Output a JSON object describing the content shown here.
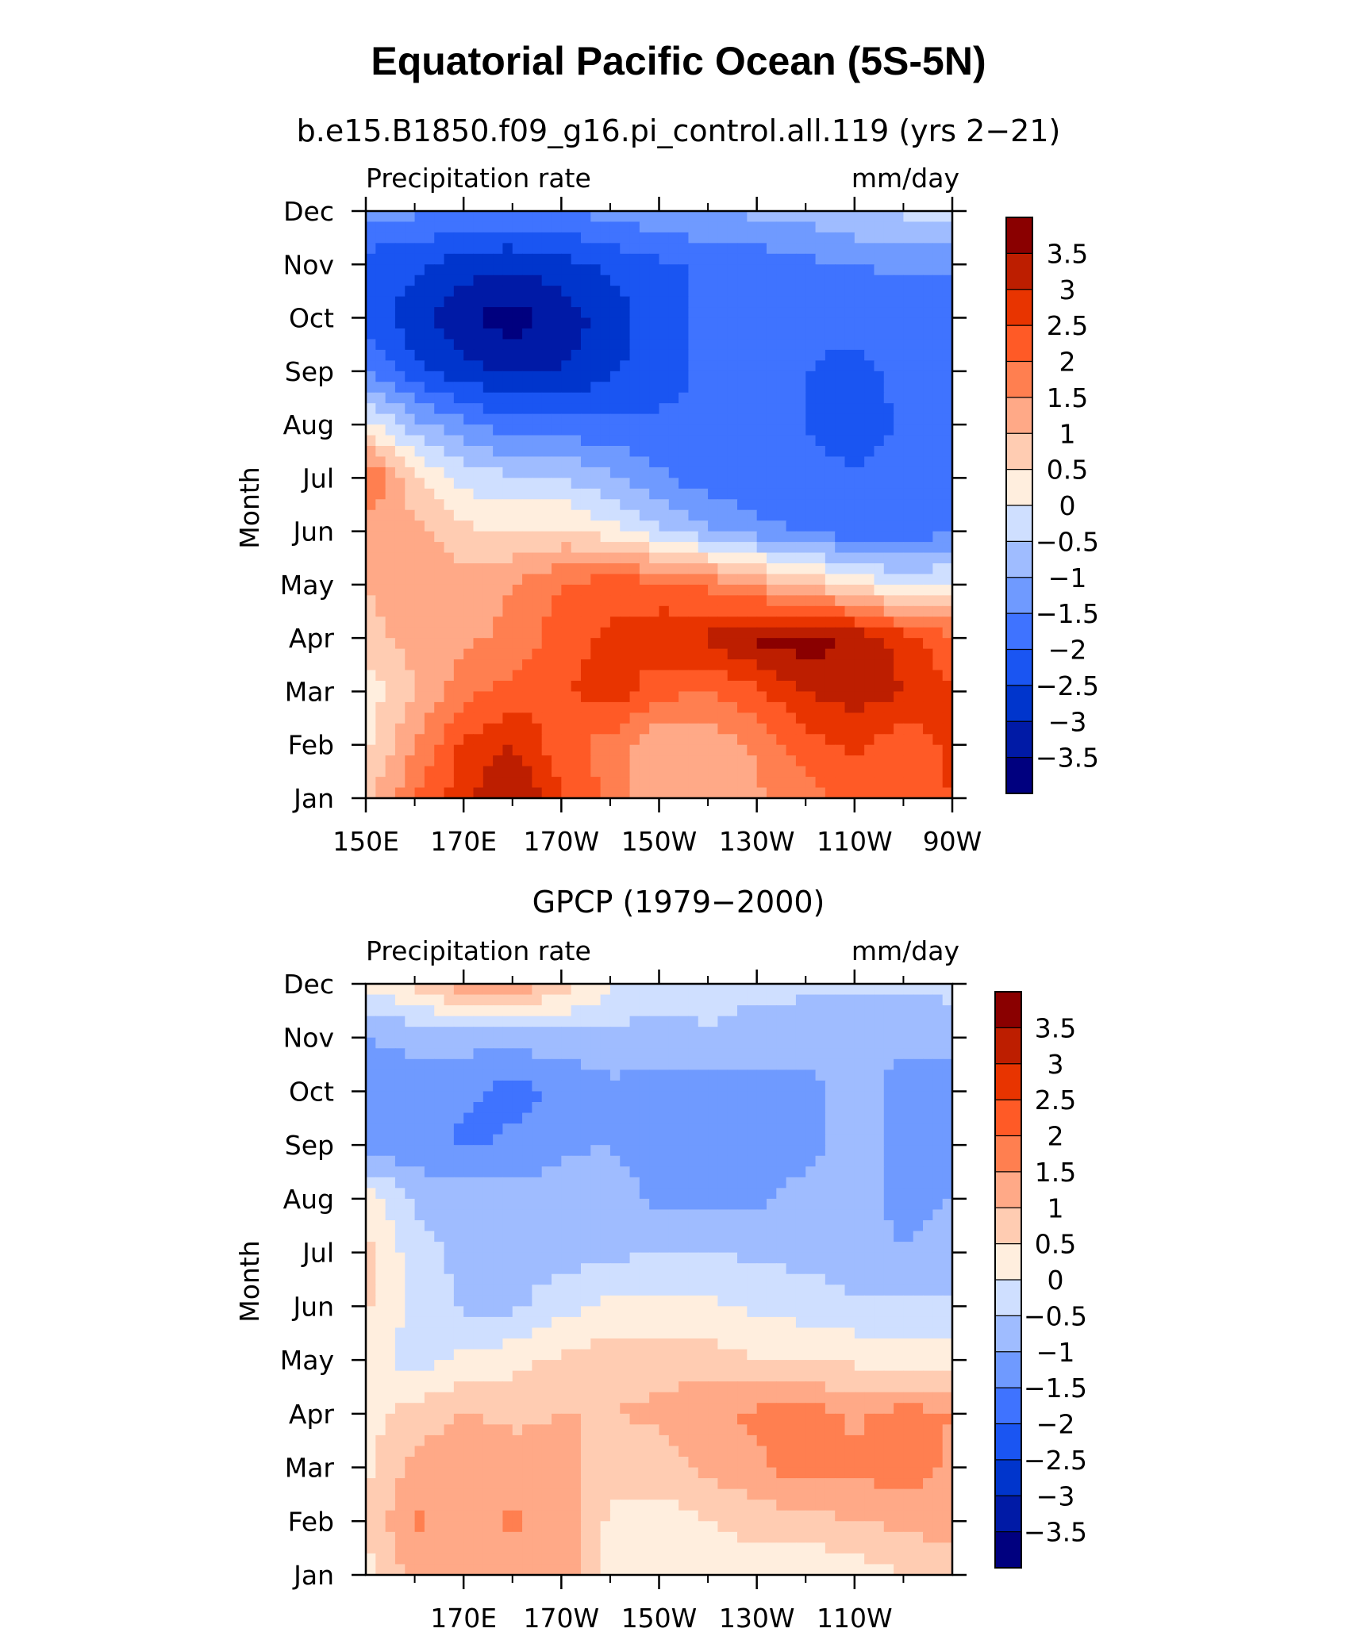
{
  "title": "Equatorial Pacific Ocean (5S-5N)",
  "chart_data": [
    {
      "type": "heatmap",
      "subtitle": "b.e15.B1850.f09_g16.pi_control.all.119 (yrs 2−21)",
      "left_label": "Precipitation rate",
      "right_label": "mm/day",
      "ylabel": "Month",
      "x_tick_labels": [
        "150E",
        "170E",
        "170W",
        "150W",
        "130W",
        "110W",
        "90W"
      ],
      "y_tick_labels": [
        "Jan",
        "Feb",
        "Mar",
        "Apr",
        "May",
        "Jun",
        "Jul",
        "Aug",
        "Sep",
        "Oct",
        "Nov",
        "Dec"
      ],
      "xlim": [
        150,
        270
      ],
      "colorbar_labels": [
        "3.5",
        "3",
        "2.5",
        "2",
        "1.5",
        "1",
        "0.5",
        "0",
        "−0.5",
        "−1",
        "−1.5",
        "−2",
        "−2.5",
        "−3",
        "−3.5"
      ],
      "lon": [
        150,
        160,
        170,
        180,
        190,
        200,
        210,
        220,
        230,
        240,
        250,
        260,
        270
      ],
      "z": [
        [
          0.8,
          2.0,
          2.8,
          3.6,
          2.6,
          1.8,
          1.2,
          1.0,
          1.4,
          1.8,
          2.2,
          2.4,
          2.5
        ],
        [
          0.4,
          1.5,
          2.6,
          3.0,
          2.2,
          1.8,
          1.0,
          1.1,
          1.6,
          2.3,
          2.6,
          2.2,
          2.6
        ],
        [
          0.2,
          1.0,
          1.8,
          2.2,
          2.4,
          2.8,
          2.2,
          2.0,
          2.4,
          3.0,
          3.3,
          3.0,
          2.6
        ],
        [
          0.8,
          1.2,
          1.4,
          1.6,
          2.3,
          2.6,
          2.8,
          3.1,
          3.6,
          3.8,
          3.4,
          2.8,
          2.0
        ],
        [
          1.0,
          1.4,
          1.2,
          1.5,
          2.0,
          2.3,
          2.2,
          1.9,
          1.4,
          0.9,
          0.4,
          -0.2,
          0.2
        ],
        [
          1.2,
          1.2,
          0.6,
          0.5,
          0.6,
          0.2,
          -0.4,
          -0.9,
          -1.3,
          -1.6,
          -1.8,
          -1.8,
          -1.6
        ],
        [
          2.2,
          0.6,
          -0.2,
          -0.4,
          -0.5,
          -0.9,
          -1.4,
          -1.8,
          -1.9,
          -1.9,
          -1.9,
          -1.9,
          -1.9
        ],
        [
          0.2,
          -0.8,
          -1.4,
          -1.8,
          -1.8,
          -1.9,
          -1.9,
          -1.9,
          -1.9,
          -2.0,
          -2.3,
          -1.9,
          -1.9
        ],
        [
          -1.4,
          -2.4,
          -2.8,
          -3.1,
          -3.0,
          -2.6,
          -2.2,
          -1.9,
          -1.9,
          -2.0,
          -2.1,
          -1.9,
          -1.9
        ],
        [
          -2.2,
          -2.8,
          -3.4,
          -3.8,
          -3.3,
          -2.8,
          -2.2,
          -1.9,
          -1.9,
          -1.9,
          -1.9,
          -1.9,
          -1.8
        ],
        [
          -2.2,
          -2.4,
          -2.8,
          -2.9,
          -2.7,
          -2.4,
          -2.1,
          -1.9,
          -1.8,
          -1.6,
          -1.5,
          -1.4,
          -1.4
        ],
        [
          -1.4,
          -1.4,
          -1.6,
          -1.6,
          -1.5,
          -1.3,
          -1.1,
          -1.0,
          -0.9,
          -0.8,
          -0.5,
          -0.4,
          -0.4
        ]
      ]
    },
    {
      "type": "heatmap",
      "subtitle": "GPCP (1979−2000)",
      "left_label": "Precipitation rate",
      "right_label": "mm/day",
      "ylabel": "Month",
      "x_tick_labels": [
        "170E",
        "170W",
        "150W",
        "130W",
        "110W"
      ],
      "y_tick_labels": [
        "Jan",
        "Feb",
        "Mar",
        "Apr",
        "May",
        "Jun",
        "Jul",
        "Aug",
        "Sep",
        "Oct",
        "Nov",
        "Dec"
      ],
      "xlim": [
        150,
        270
      ],
      "colorbar_labels": [
        "3.5",
        "3",
        "2.5",
        "2",
        "1.5",
        "1",
        "0.5",
        "0",
        "−0.5",
        "−1",
        "−1.5",
        "−2",
        "−2.5",
        "−3",
        "−3.5"
      ],
      "lon": [
        150,
        160,
        170,
        180,
        190,
        200,
        210,
        220,
        230,
        240,
        250,
        260,
        270
      ],
      "z": [
        [
          0.3,
          1.2,
          1.4,
          1.3,
          1.5,
          0.2,
          0.1,
          0.2,
          0.2,
          0.1,
          0.2,
          0.5,
          0.8
        ],
        [
          0.5,
          1.6,
          1.2,
          1.6,
          1.3,
          0.4,
          0.2,
          0.5,
          0.7,
          0.8,
          1.0,
          1.1,
          1.2
        ],
        [
          0.4,
          1.2,
          1.5,
          1.2,
          1.2,
          0.6,
          0.8,
          1.1,
          1.4,
          1.8,
          1.6,
          1.8,
          1.4
        ],
        [
          0.3,
          0.7,
          1.0,
          0.9,
          1.0,
          1.0,
          1.1,
          1.4,
          1.6,
          1.8,
          1.4,
          1.7,
          1.5
        ],
        [
          0.2,
          -0.2,
          0.1,
          0.3,
          0.6,
          0.8,
          0.8,
          0.7,
          0.5,
          0.4,
          0.4,
          0.3,
          0.2
        ],
        [
          0.6,
          -0.2,
          -0.6,
          -0.6,
          -0.2,
          0.1,
          0.2,
          0.1,
          -0.1,
          -0.2,
          -0.4,
          -0.4,
          -0.4
        ],
        [
          0.7,
          -0.3,
          -0.6,
          -0.7,
          -0.7,
          -0.6,
          -0.5,
          -0.5,
          -0.6,
          -0.7,
          -0.8,
          -1.0,
          -0.8
        ],
        [
          0.3,
          -0.6,
          -0.7,
          -0.8,
          -0.8,
          -0.7,
          -1.1,
          -1.1,
          -1.1,
          -0.8,
          -0.7,
          -1.2,
          -1.0
        ],
        [
          -1.3,
          -1.3,
          -1.6,
          -1.4,
          -1.1,
          -1.0,
          -1.3,
          -1.2,
          -1.1,
          -1.2,
          -0.8,
          -1.2,
          -1.2
        ],
        [
          -1.2,
          -1.2,
          -1.4,
          -1.7,
          -1.4,
          -1.1,
          -1.2,
          -1.2,
          -1.2,
          -1.2,
          -0.8,
          -1.2,
          -1.2
        ],
        [
          -1.0,
          -0.9,
          -0.8,
          -0.8,
          -0.7,
          -0.7,
          -0.7,
          -0.6,
          -0.8,
          -0.8,
          -0.8,
          -0.9,
          -0.9
        ],
        [
          0.1,
          0.6,
          1.4,
          1.5,
          0.8,
          0.1,
          -0.2,
          -0.2,
          -0.3,
          -0.4,
          -0.4,
          -0.4,
          -0.3
        ]
      ]
    }
  ],
  "palette": [
    "#00007f",
    "#001aa6",
    "#0035cc",
    "#1a55f2",
    "#3f73ff",
    "#6f9aff",
    "#9fbcff",
    "#cfdfff",
    "#ffeede",
    "#ffccb2",
    "#ffa987",
    "#ff7f50",
    "#ff5a26",
    "#e83400",
    "#bd1e00",
    "#8a0000"
  ]
}
